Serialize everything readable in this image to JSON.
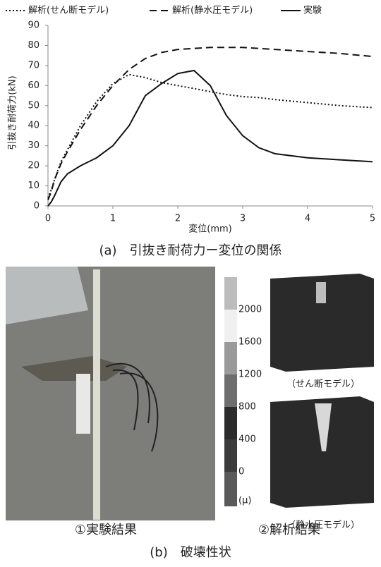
{
  "chart_data": {
    "type": "line",
    "y_label": "引抜き耐荷力(kN)",
    "x_label": "変位(mm)",
    "x": [
      0,
      0.05,
      0.1,
      0.2,
      0.3,
      0.5,
      0.75,
      1,
      1.25,
      1.5,
      1.75,
      2,
      2.25,
      2.5,
      2.75,
      3,
      3.25,
      3.5,
      4,
      4.5,
      5
    ],
    "series": [
      {
        "name": "解析(せん断モデル)",
        "color": "#111111",
        "style": "dotted",
        "values": [
          4,
          8,
          13,
          22,
          28,
          40,
          52,
          61,
          65.5,
          64,
          61.5,
          60,
          58.5,
          57,
          55.5,
          54.5,
          54,
          53,
          51.5,
          50,
          49
        ]
      },
      {
        "name": "解析(静水圧モデル)",
        "color": "#111111",
        "style": "dashed",
        "values": [
          3,
          7,
          13,
          21,
          27,
          38,
          50,
          60,
          68,
          73.5,
          76.5,
          78,
          78.5,
          79,
          79,
          79,
          78.5,
          78,
          77,
          76,
          74.5
        ]
      },
      {
        "name": "実験",
        "color": "#111111",
        "style": "solid",
        "values": [
          0,
          2,
          5,
          12,
          16,
          20,
          24,
          30,
          40,
          55,
          61,
          66,
          67.5,
          60,
          45,
          35,
          29,
          26,
          24,
          23,
          22
        ]
      }
    ],
    "xlim": [
      0,
      5
    ],
    "xticks": [
      0,
      1,
      2,
      3,
      4,
      5
    ],
    "ylim": [
      0,
      90
    ],
    "yticks": [
      0,
      10,
      20,
      30,
      40,
      50,
      60,
      70,
      80,
      90
    ],
    "grid": false
  },
  "caption_a": "(a)　引抜き耐荷力ー変位の関係",
  "colorbar": {
    "ticks": [
      2000,
      1600,
      1200,
      800,
      400,
      0
    ],
    "unit": "(μ)"
  },
  "model_labels": [
    "（せん断モデル）",
    "（静水圧モデル）"
  ],
  "panel_labels": [
    "①実験結果",
    "②解析結果"
  ],
  "caption_b": "(b)　破壊性状"
}
